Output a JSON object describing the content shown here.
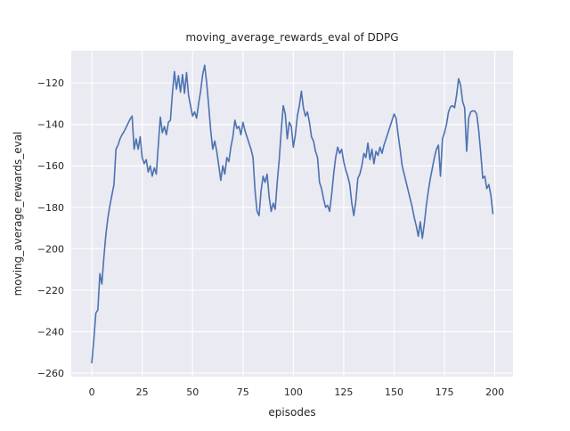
{
  "figure": {
    "title": "moving_average_rewards_eval of DDPG",
    "xlabel": "episodes",
    "ylabel": "moving_average_rewards_eval"
  },
  "chart_data": {
    "type": "line",
    "title": "moving_average_rewards_eval of DDPG",
    "xlabel": "episodes",
    "ylabel": "moving_average_rewards_eval",
    "grid": true,
    "legend": "none",
    "xlim": [
      -10.2,
      209.0
    ],
    "ylim": [
      -261.7,
      -104.5
    ],
    "x_ticks": [
      0,
      25,
      50,
      75,
      100,
      125,
      150,
      175,
      200
    ],
    "y_ticks": [
      -120,
      -140,
      -160,
      -180,
      -200,
      -220,
      -240,
      -260
    ],
    "style": {
      "figure_bg": "#ffffff",
      "axes_bg": "#eaeaf2",
      "grid_color": "#ffffff",
      "text_color": "#262626",
      "line_color": "#4c72b0",
      "line_width": 1.6
    },
    "series": [
      {
        "name": "moving_average_rewards_eval",
        "color": "#4c72b0",
        "x_start": 0,
        "x_step": 1,
        "values": [
          -255,
          -244,
          -231,
          -229.5,
          -212,
          -217,
          -204,
          -193,
          -185,
          -179,
          -174,
          -169,
          -152,
          -150,
          -147,
          -145,
          -143.5,
          -141.5,
          -139.5,
          -137.5,
          -136,
          -152,
          -147,
          -152,
          -146,
          -156,
          -159,
          -157,
          -163,
          -160,
          -165,
          -161,
          -164,
          -150,
          -136.5,
          -144,
          -141,
          -145,
          -139,
          -138,
          -125,
          -114.5,
          -123,
          -116.5,
          -124.5,
          -116,
          -125,
          -115,
          -126,
          -131,
          -136,
          -134,
          -137,
          -130,
          -124,
          -116,
          -111.5,
          -120,
          -131,
          -143,
          -152,
          -148,
          -153,
          -160,
          -167,
          -160,
          -164,
          -156,
          -158,
          -151,
          -146,
          -138,
          -142,
          -141,
          -145,
          -139,
          -143,
          -146,
          -149,
          -152,
          -156,
          -172,
          -182,
          -184,
          -172,
          -165,
          -168,
          -164,
          -175,
          -182,
          -178,
          -181,
          -168,
          -157,
          -143,
          -131,
          -135,
          -147,
          -139,
          -141,
          -151,
          -145,
          -136,
          -131,
          -124,
          -132,
          -136,
          -134,
          -139,
          -146,
          -148,
          -153,
          -156,
          -168,
          -171,
          -176,
          -180,
          -179,
          -182,
          -174,
          -164,
          -156,
          -151,
          -154,
          -152,
          -158,
          -162,
          -165,
          -169,
          -178,
          -184,
          -177,
          -166,
          -164,
          -160,
          -154,
          -156,
          -149,
          -157,
          -152,
          -159,
          -153,
          -155,
          -151,
          -154,
          -150,
          -147,
          -144,
          -141,
          -138,
          -135,
          -137,
          -145,
          -152,
          -160,
          -164,
          -168,
          -172,
          -176,
          -180,
          -185,
          -189,
          -194,
          -187,
          -195,
          -188,
          -179,
          -172,
          -166,
          -161,
          -156,
          -152,
          -150,
          -165,
          -147,
          -144,
          -140,
          -134,
          -131.5,
          -131,
          -132,
          -126,
          -118,
          -121,
          -129,
          -132,
          -153,
          -137,
          -134,
          -133.5,
          -133.5,
          -135,
          -143,
          -154,
          -166,
          -165,
          -171,
          -169,
          -174,
          -183
        ]
      }
    ]
  }
}
